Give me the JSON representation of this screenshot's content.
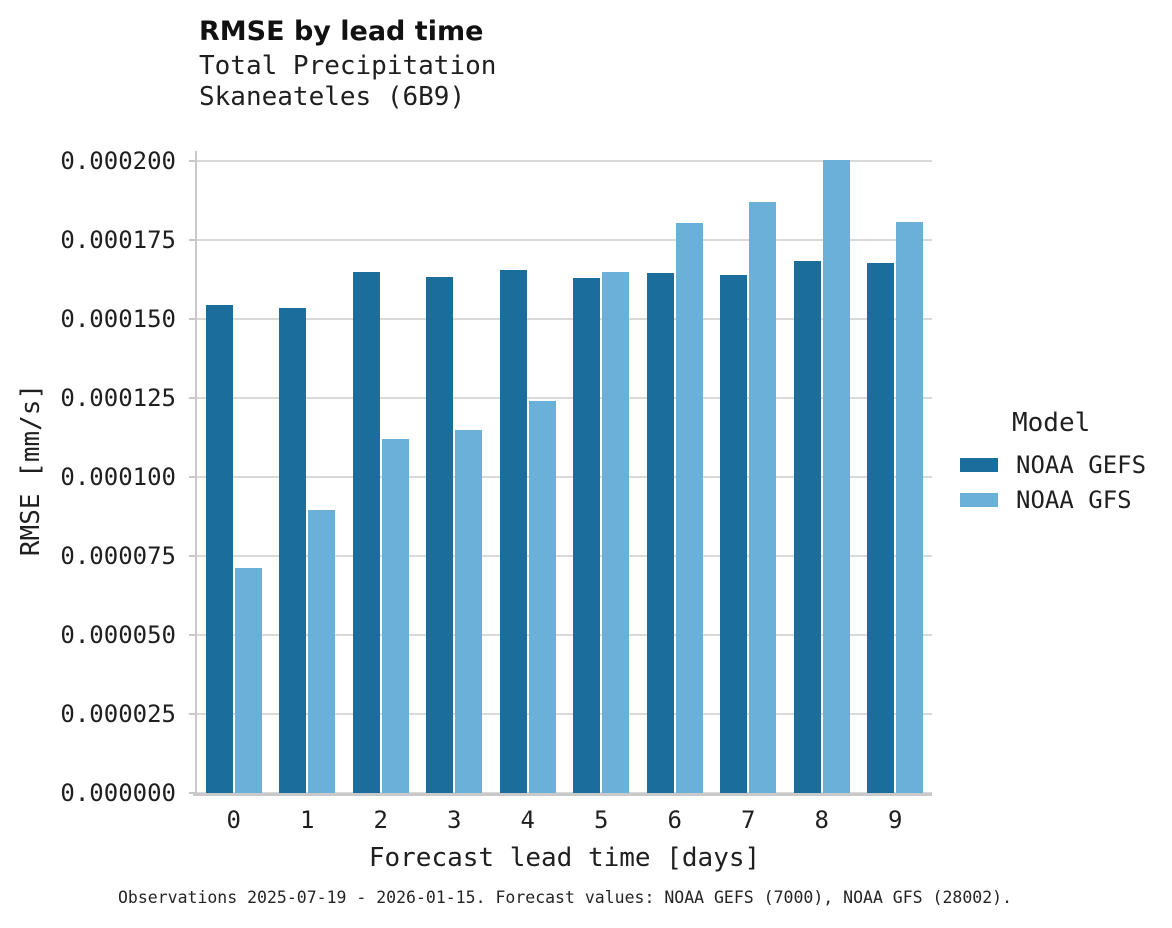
{
  "chart_data": {
    "type": "bar",
    "title": "RMSE by lead time",
    "subtitle_line1": "Total Precipitation",
    "subtitle_line2": "Skaneateles (6B9)",
    "xlabel": "Forecast lead time [days]",
    "ylabel": "RMSE [mm/s]",
    "categories": [
      "0",
      "1",
      "2",
      "3",
      "4",
      "5",
      "6",
      "7",
      "8",
      "9"
    ],
    "series": [
      {
        "name": "NOAA GEFS",
        "color": "#1b6d9c",
        "values": [
          0.0001544,
          0.0001537,
          0.0001651,
          0.0001635,
          0.0001655,
          0.0001632,
          0.0001646,
          0.0001641,
          0.0001683,
          0.0001678
        ]
      },
      {
        "name": "NOAA GFS",
        "color": "#6bb0d8",
        "values": [
          7.13e-05,
          8.97e-05,
          0.0001122,
          0.0001151,
          0.000124,
          0.0001651,
          0.0001806,
          0.0001872,
          0.0002003,
          0.0001808
        ]
      }
    ],
    "y_ticks": [
      "0.000000",
      "0.000025",
      "0.000050",
      "0.000075",
      "0.000100",
      "0.000125",
      "0.000150",
      "0.000175",
      "0.000200"
    ],
    "ylim": [
      0,
      0.000202
    ],
    "grid": "horizontal-only",
    "legend_title": "Model",
    "legend_position": "right",
    "caption": "Observations 2025-07-19 - 2026-01-15. Forecast values: NOAA GEFS (7000), NOAA GFS (28002)."
  },
  "colors": {
    "gridline": "#d9d9d9",
    "spine": "#c9c9c9",
    "text": "#1f1f1f"
  }
}
